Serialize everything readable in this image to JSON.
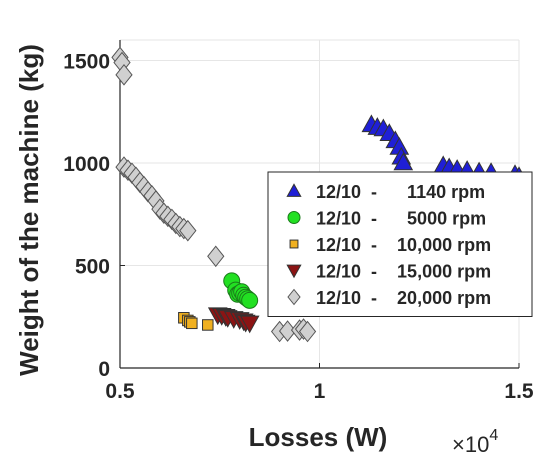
{
  "chart_data": {
    "type": "scatter",
    "xlabel": "Losses (W)",
    "ylabel": "Weight of the machine (kg)",
    "x_multiplier_label": "×10",
    "x_multiplier_exponent": "4",
    "xlim": [
      0.5,
      1.5
    ],
    "ylim": [
      0,
      1600
    ],
    "x_ticks": [
      0.5,
      1,
      1.5
    ],
    "x_tick_labels": [
      "0.5",
      "1",
      "1.5"
    ],
    "y_ticks": [
      0,
      500,
      1000,
      1500
    ],
    "y_tick_labels": [
      "0",
      "500",
      "1000",
      "1500"
    ],
    "grid": true,
    "legend_position": "center-right",
    "series": [
      {
        "name": "12/10  -      1140 rpm",
        "marker": "triangle-up",
        "color": "#1f1fd6",
        "points": [
          [
            1.13,
            1188
          ],
          [
            1.145,
            1175
          ],
          [
            1.16,
            1168
          ],
          [
            1.175,
            1145
          ],
          [
            1.19,
            1110
          ],
          [
            1.2,
            1078
          ],
          [
            1.205,
            1030
          ],
          [
            1.21,
            1002
          ],
          [
            1.31,
            988
          ],
          [
            1.325,
            978
          ],
          [
            1.345,
            970
          ],
          [
            1.37,
            965
          ],
          [
            1.4,
            958
          ],
          [
            1.43,
            955
          ],
          [
            1.49,
            945
          ],
          [
            1.5,
            935
          ]
        ]
      },
      {
        "name": "12/10  -      5000 rpm",
        "marker": "circle",
        "color": "#22e022",
        "points": [
          [
            0.78,
            425
          ],
          [
            0.79,
            380
          ],
          [
            0.795,
            360
          ],
          [
            0.8,
            365
          ],
          [
            0.805,
            372
          ],
          [
            0.81,
            355
          ],
          [
            0.815,
            345
          ],
          [
            0.82,
            338
          ],
          [
            0.825,
            330
          ]
        ]
      },
      {
        "name": "12/10  -    10,000 rpm",
        "marker": "square",
        "color": "#f0b020",
        "points": [
          [
            0.66,
            245
          ],
          [
            0.67,
            232
          ],
          [
            0.675,
            225
          ],
          [
            0.68,
            218
          ],
          [
            0.72,
            210
          ]
        ]
      },
      {
        "name": "12/10  -    15,000 rpm",
        "marker": "triangle-down",
        "color": "#8b1414",
        "points": [
          [
            0.745,
            258
          ],
          [
            0.755,
            255
          ],
          [
            0.765,
            250
          ],
          [
            0.77,
            245
          ],
          [
            0.785,
            240
          ],
          [
            0.8,
            235
          ],
          [
            0.81,
            228
          ],
          [
            0.815,
            222
          ],
          [
            0.825,
            218
          ]
        ]
      },
      {
        "name": "12/10  -    20,000 rpm",
        "marker": "diamond",
        "color": "#d0d0d0",
        "points": [
          [
            0.5,
            1515
          ],
          [
            0.505,
            1490
          ],
          [
            0.51,
            1430
          ],
          [
            0.51,
            980
          ],
          [
            0.52,
            965
          ],
          [
            0.53,
            950
          ],
          [
            0.54,
            930
          ],
          [
            0.55,
            905
          ],
          [
            0.56,
            885
          ],
          [
            0.57,
            860
          ],
          [
            0.58,
            840
          ],
          [
            0.59,
            815
          ],
          [
            0.6,
            775
          ],
          [
            0.61,
            755
          ],
          [
            0.62,
            740
          ],
          [
            0.63,
            725
          ],
          [
            0.64,
            705
          ],
          [
            0.65,
            690
          ],
          [
            0.66,
            680
          ],
          [
            0.67,
            670
          ],
          [
            0.74,
            545
          ],
          [
            0.9,
            178
          ],
          [
            0.92,
            180
          ],
          [
            0.95,
            185
          ],
          [
            0.96,
            190
          ],
          [
            0.97,
            178
          ]
        ]
      }
    ]
  }
}
